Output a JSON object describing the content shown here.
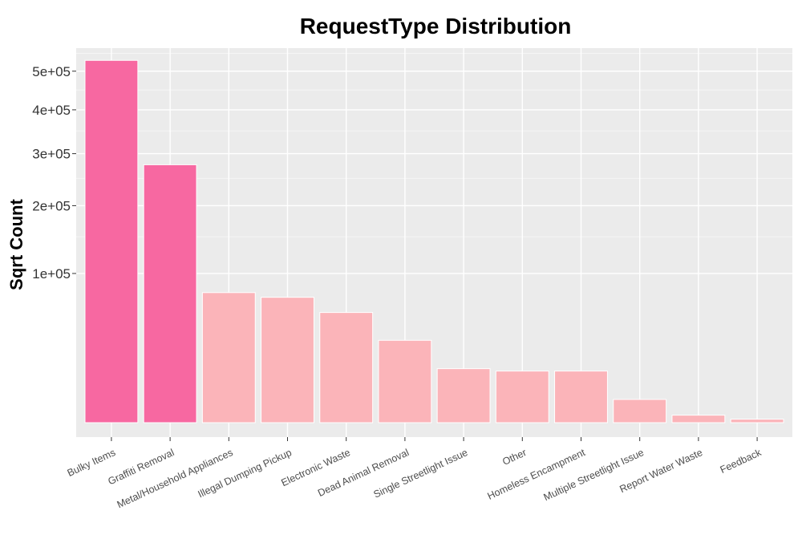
{
  "chart_data": {
    "type": "bar",
    "title": "RequestType Distribution",
    "ylabel": "Sqrt Count",
    "xlabel": "",
    "y_scale": "sqrt",
    "ylim": [
      0,
      565000
    ],
    "yticks": [
      100000,
      200000,
      300000,
      400000,
      500000
    ],
    "ytick_labels": [
      "1e+05",
      "2e+05",
      "3e+05",
      "4e+05",
      "5e+05"
    ],
    "grid": true,
    "legend": "none",
    "categories": [
      "Bulky Items",
      "Graffiti Removal",
      "Metal/Household Appliances",
      "Illegal Dumping Pickup",
      "Electronic Waste",
      "Dead Animal Removal",
      "Single Streetlight Issue",
      "Other",
      "Homeless Encampment",
      "Multiple Streetlight Issue",
      "Report Water Waste",
      "Feedback"
    ],
    "values": [
      530000,
      277000,
      78000,
      73000,
      58000,
      35000,
      17500,
      16300,
      16300,
      5300,
      1800,
      1200
    ],
    "highlight": [
      true,
      true,
      false,
      false,
      false,
      false,
      false,
      false,
      false,
      false,
      false,
      false
    ]
  },
  "colors": {
    "panel_background": "#EBEBEB",
    "grid_major": "#FFFFFF",
    "grid_minor": "#F5F5F5",
    "bar_highlight": "#F768A1",
    "bar_normal": "#FBB4B9",
    "bar_outline": "#FFFFFF"
  }
}
